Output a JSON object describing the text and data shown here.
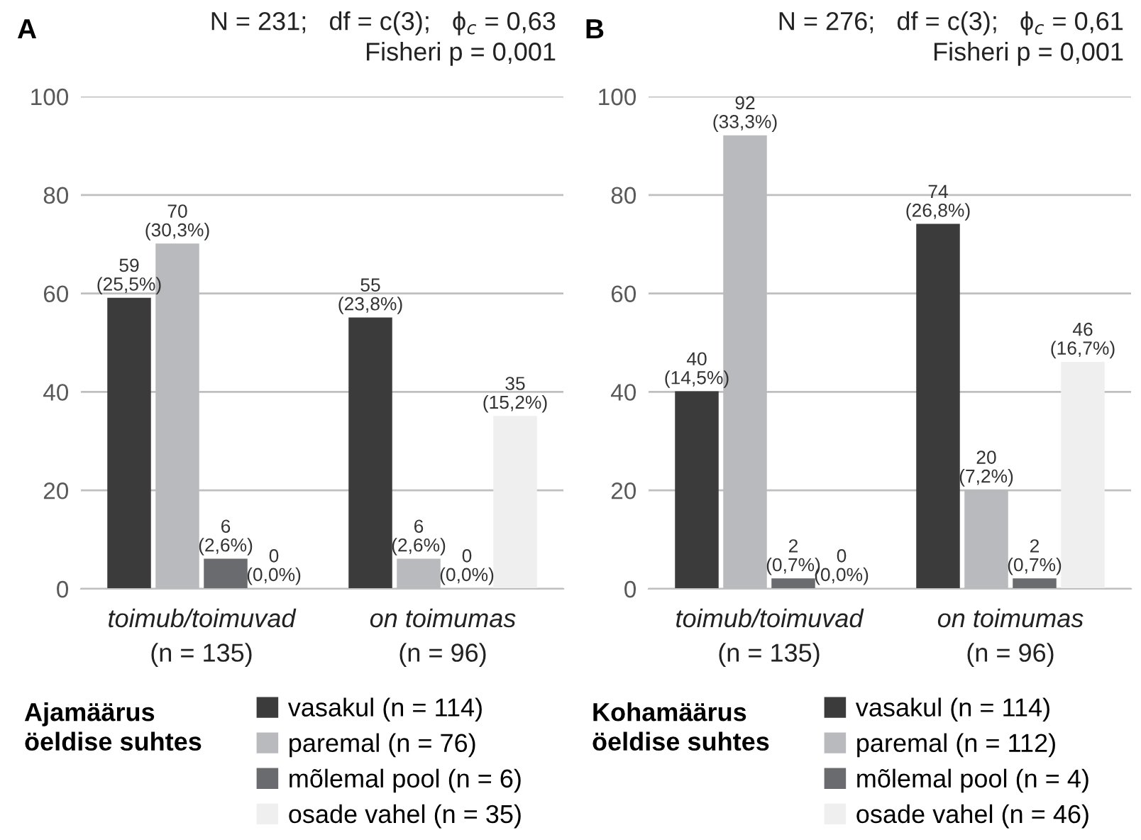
{
  "chart_data": [
    {
      "type": "bar",
      "title": "A",
      "subtitle": "N = 231;   df = c(3);   ϕ$_{c}$ = 0,63\nFisheri p = 0,001",
      "legend_title": "Ajamäärus\nöeldise suhtes",
      "categories": [
        "toimub/toimuvad\n(n = 135)",
        "on toimumas\n(n = 96)"
      ],
      "series": [
        {
          "name": "vasakul (n = 114)",
          "color": "#3b3b3c",
          "values": [
            59,
            55
          ],
          "value_labels": [
            "59\n(25,5%)",
            "55\n(23,8%)"
          ]
        },
        {
          "name": "paremal (n = 76)",
          "color": "#b9babd",
          "values": [
            70,
            6
          ],
          "value_labels": [
            "70\n(30,3%)",
            "6\n(2,6%)"
          ]
        },
        {
          "name": "mõlemal pool (n = 6)",
          "color": "#6a6b6e",
          "values": [
            6,
            0
          ],
          "value_labels": [
            "6\n(2,6%)",
            "0\n(0,0%)"
          ]
        },
        {
          "name": "osade vahel (n = 35)",
          "color": "#efeff0",
          "values": [
            0,
            35
          ],
          "value_labels": [
            "0\n(0,0%)",
            "35\n(15,2%)"
          ]
        }
      ],
      "ylim": [
        0,
        100
      ],
      "yticks": [
        0,
        20,
        40,
        60,
        80,
        100
      ],
      "grid": "y",
      "legend": "bottom"
    },
    {
      "type": "bar",
      "title": "B",
      "subtitle": "N = 276;   df = c(3);   ϕ$_{c}$ = 0,61\nFisheri p = 0,001",
      "legend_title": "Kohamäärus\nöeldise suhtes",
      "categories": [
        "toimub/toimuvad\n(n = 135)",
        "on toimumas\n(n = 96)"
      ],
      "series": [
        {
          "name": "vasakul (n = 114)",
          "color": "#3b3b3c",
          "values": [
            40,
            74
          ],
          "value_labels": [
            "40\n(14,5%)",
            "74\n(26,8%)"
          ]
        },
        {
          "name": "paremal (n = 112)",
          "color": "#b9babd",
          "values": [
            92,
            20
          ],
          "value_labels": [
            "92\n(33,3%)",
            "20\n(7,2%)"
          ]
        },
        {
          "name": "mõlemal pool (n = 4)",
          "color": "#6a6b6e",
          "values": [
            2,
            2
          ],
          "value_labels": [
            "2\n(0,7%)",
            "2\n(0,7%)"
          ]
        },
        {
          "name": "osade vahel (n = 46)",
          "color": "#efeff0",
          "values": [
            0,
            46
          ],
          "value_labels": [
            "0\n(0,0%)",
            "46\n(16,7%)"
          ]
        }
      ],
      "ylim": [
        0,
        100
      ],
      "yticks": [
        0,
        20,
        40,
        60,
        80,
        100
      ],
      "grid": "y",
      "legend": "bottom"
    }
  ]
}
